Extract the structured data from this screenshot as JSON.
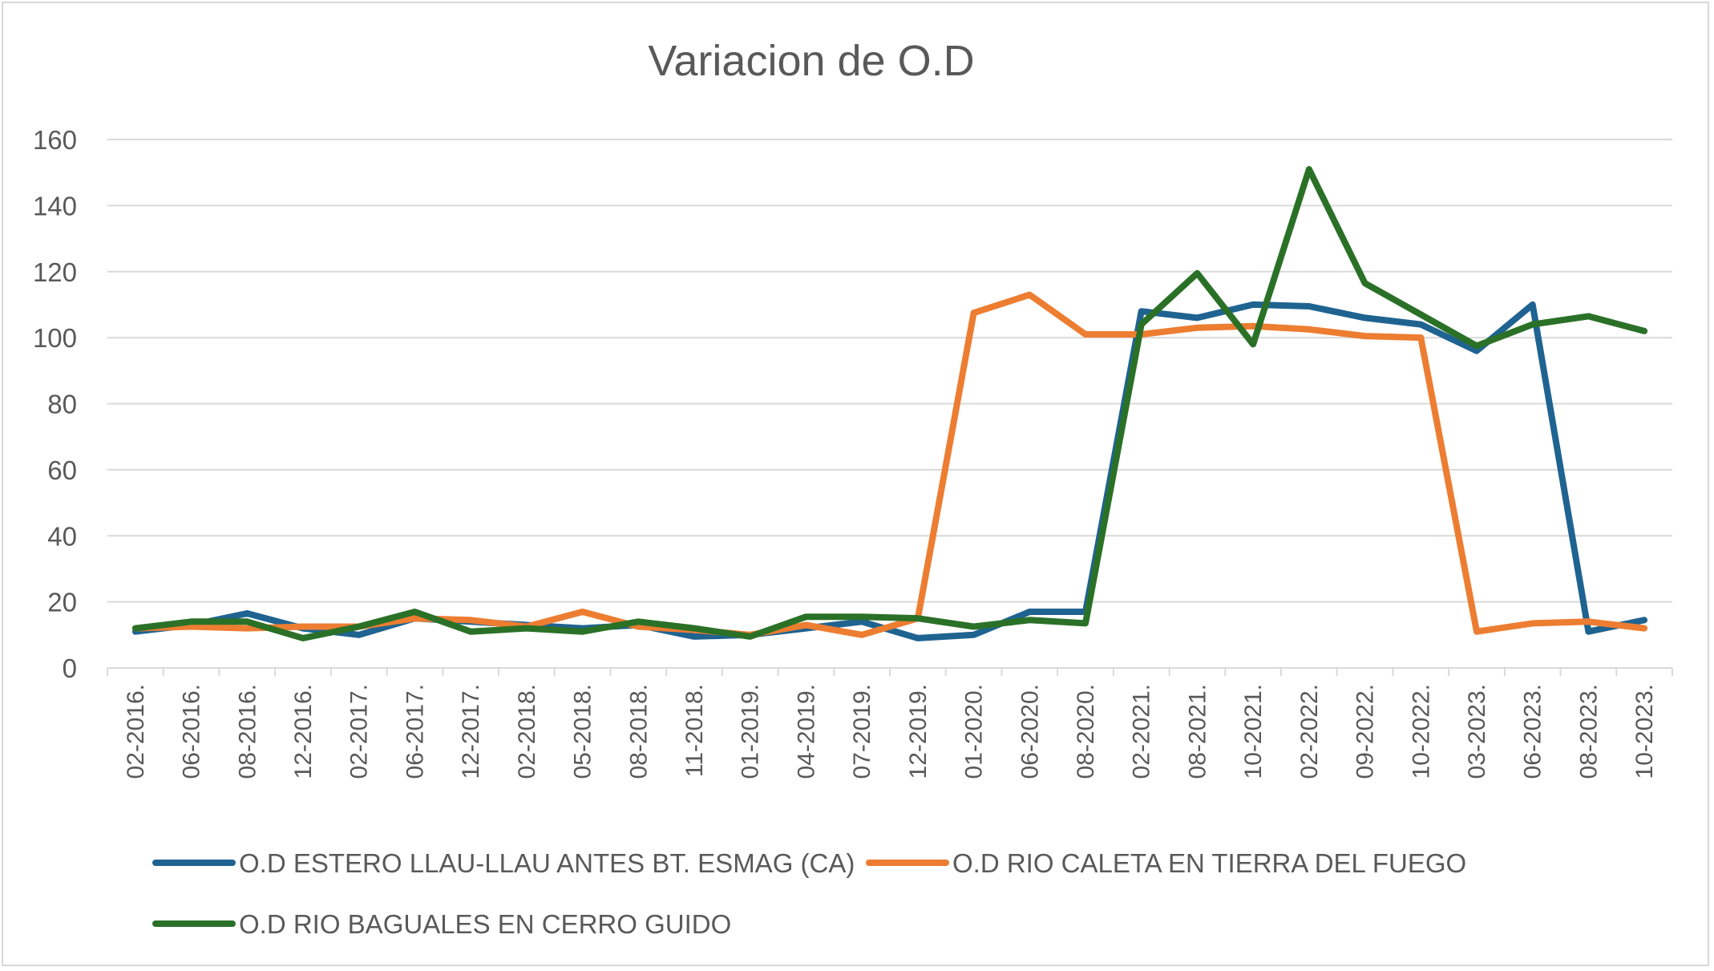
{
  "chart_data": {
    "type": "line",
    "title": "Variacion de O.D",
    "xlabel": "",
    "ylabel": "",
    "ylim": [
      0,
      160
    ],
    "yticks": [
      0,
      20,
      40,
      60,
      80,
      100,
      120,
      140,
      160
    ],
    "grid": true,
    "legend_position": "bottom",
    "categories": [
      "02-2016.",
      "06-2016.",
      "08-2016.",
      "12-2016.",
      "02-2017.",
      "06-2017.",
      "12-2017.",
      "02-2018.",
      "05-2018.",
      "08-2018.",
      "11-2018.",
      "01-2019.",
      "04-2019.",
      "07-2019.",
      "12-2019.",
      "01-2020.",
      "06-2020.",
      "08-2020.",
      "02-2021.",
      "08-2021.",
      "10-2021.",
      "02-2022.",
      "09-2022.",
      "10-2022.",
      "03-2023.",
      "06-2023.",
      "08-2023.",
      "10-2023."
    ],
    "series": [
      {
        "name": "O.D ESTERO LLAU-LLAU ANTES BT. ESMAG (CA)",
        "color": "#1f6391",
        "values": [
          11,
          13,
          16.5,
          12,
          10,
          15,
          14,
          13,
          12,
          13,
          9.5,
          10,
          12,
          14,
          9,
          10,
          17,
          17,
          108,
          106,
          110,
          109.5,
          106,
          104,
          96,
          110,
          11,
          14.5
        ]
      },
      {
        "name": "O.D RIO CALETA EN TIERRA DEL FUEGO",
        "color": "#ed7d31",
        "values": [
          12,
          12.5,
          12,
          12.5,
          12.5,
          15,
          14.5,
          12.5,
          17,
          12.5,
          11.5,
          10,
          13,
          10,
          15,
          107.5,
          113,
          101,
          101,
          103,
          103.5,
          102.5,
          100.5,
          100,
          11,
          13.5,
          14,
          12
        ]
      },
      {
        "name": "O.D RIO BAGUALES EN CERRO GUIDO",
        "color": "#2a7127",
        "values": [
          12,
          14,
          14,
          9,
          12.5,
          17,
          11,
          12,
          11,
          14,
          12,
          9.5,
          15.5,
          15.5,
          15,
          12.5,
          14.5,
          13.5,
          104,
          119.5,
          98,
          151,
          116.5,
          107,
          97.5,
          104,
          106.5,
          102
        ]
      }
    ]
  }
}
